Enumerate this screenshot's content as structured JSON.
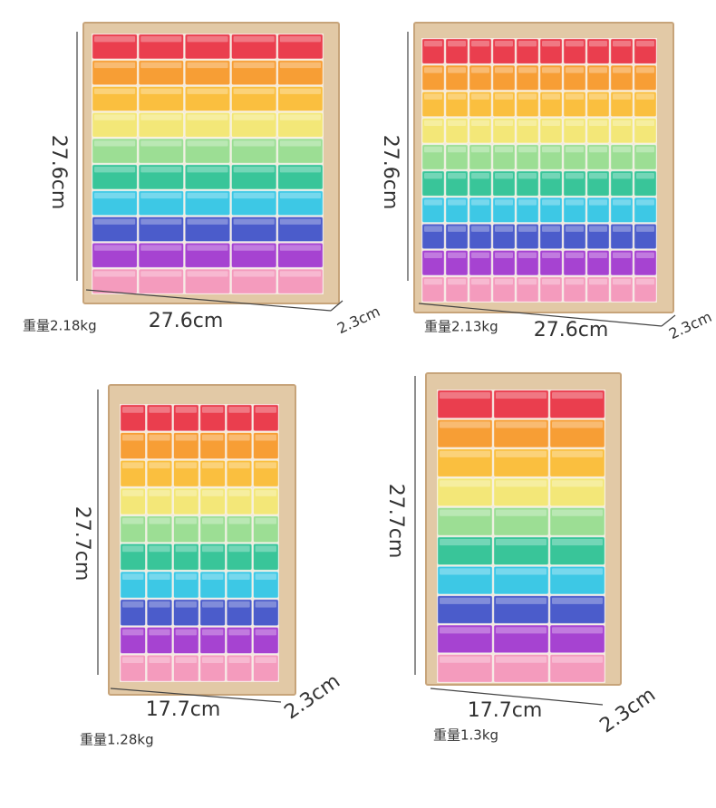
{
  "products": [
    {
      "height": "27.6cm",
      "width": "27.6cm",
      "depth": "2.3cm",
      "weight": "重量2.18kg"
    },
    {
      "height": "27.6cm",
      "width": "27.6cm",
      "depth": "2.3cm",
      "weight": "重量2.13kg"
    },
    {
      "height": "27.7cm",
      "width": "17.7cm",
      "depth": "2.3cm",
      "weight": "重量1.28kg"
    },
    {
      "height": "27.7cm",
      "width": "17.7cm",
      "depth": "2.3cm",
      "weight": "重量1.3kg"
    }
  ]
}
